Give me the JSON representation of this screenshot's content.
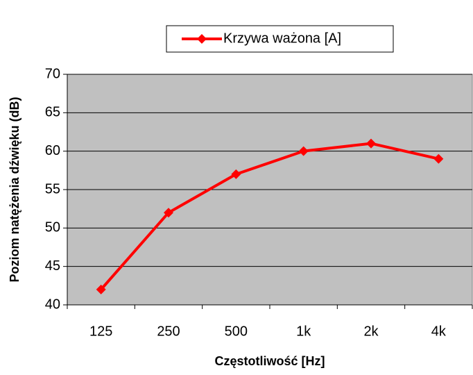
{
  "chart_data": {
    "type": "line",
    "categories": [
      "125",
      "250",
      "500",
      "1k",
      "2k",
      "4k"
    ],
    "series": [
      {
        "name": "Krzywa ważona [A]",
        "color": "#ff0000",
        "values": [
          42,
          52,
          57,
          60,
          61,
          59
        ]
      }
    ],
    "x_label": "Częstotliwość [Hz]",
    "y_label": "Poziom natężenia dźwięku (dB)",
    "ylim": [
      40,
      70
    ],
    "yticks": [
      40,
      45,
      50,
      55,
      60,
      65,
      70
    ],
    "grid": true
  }
}
